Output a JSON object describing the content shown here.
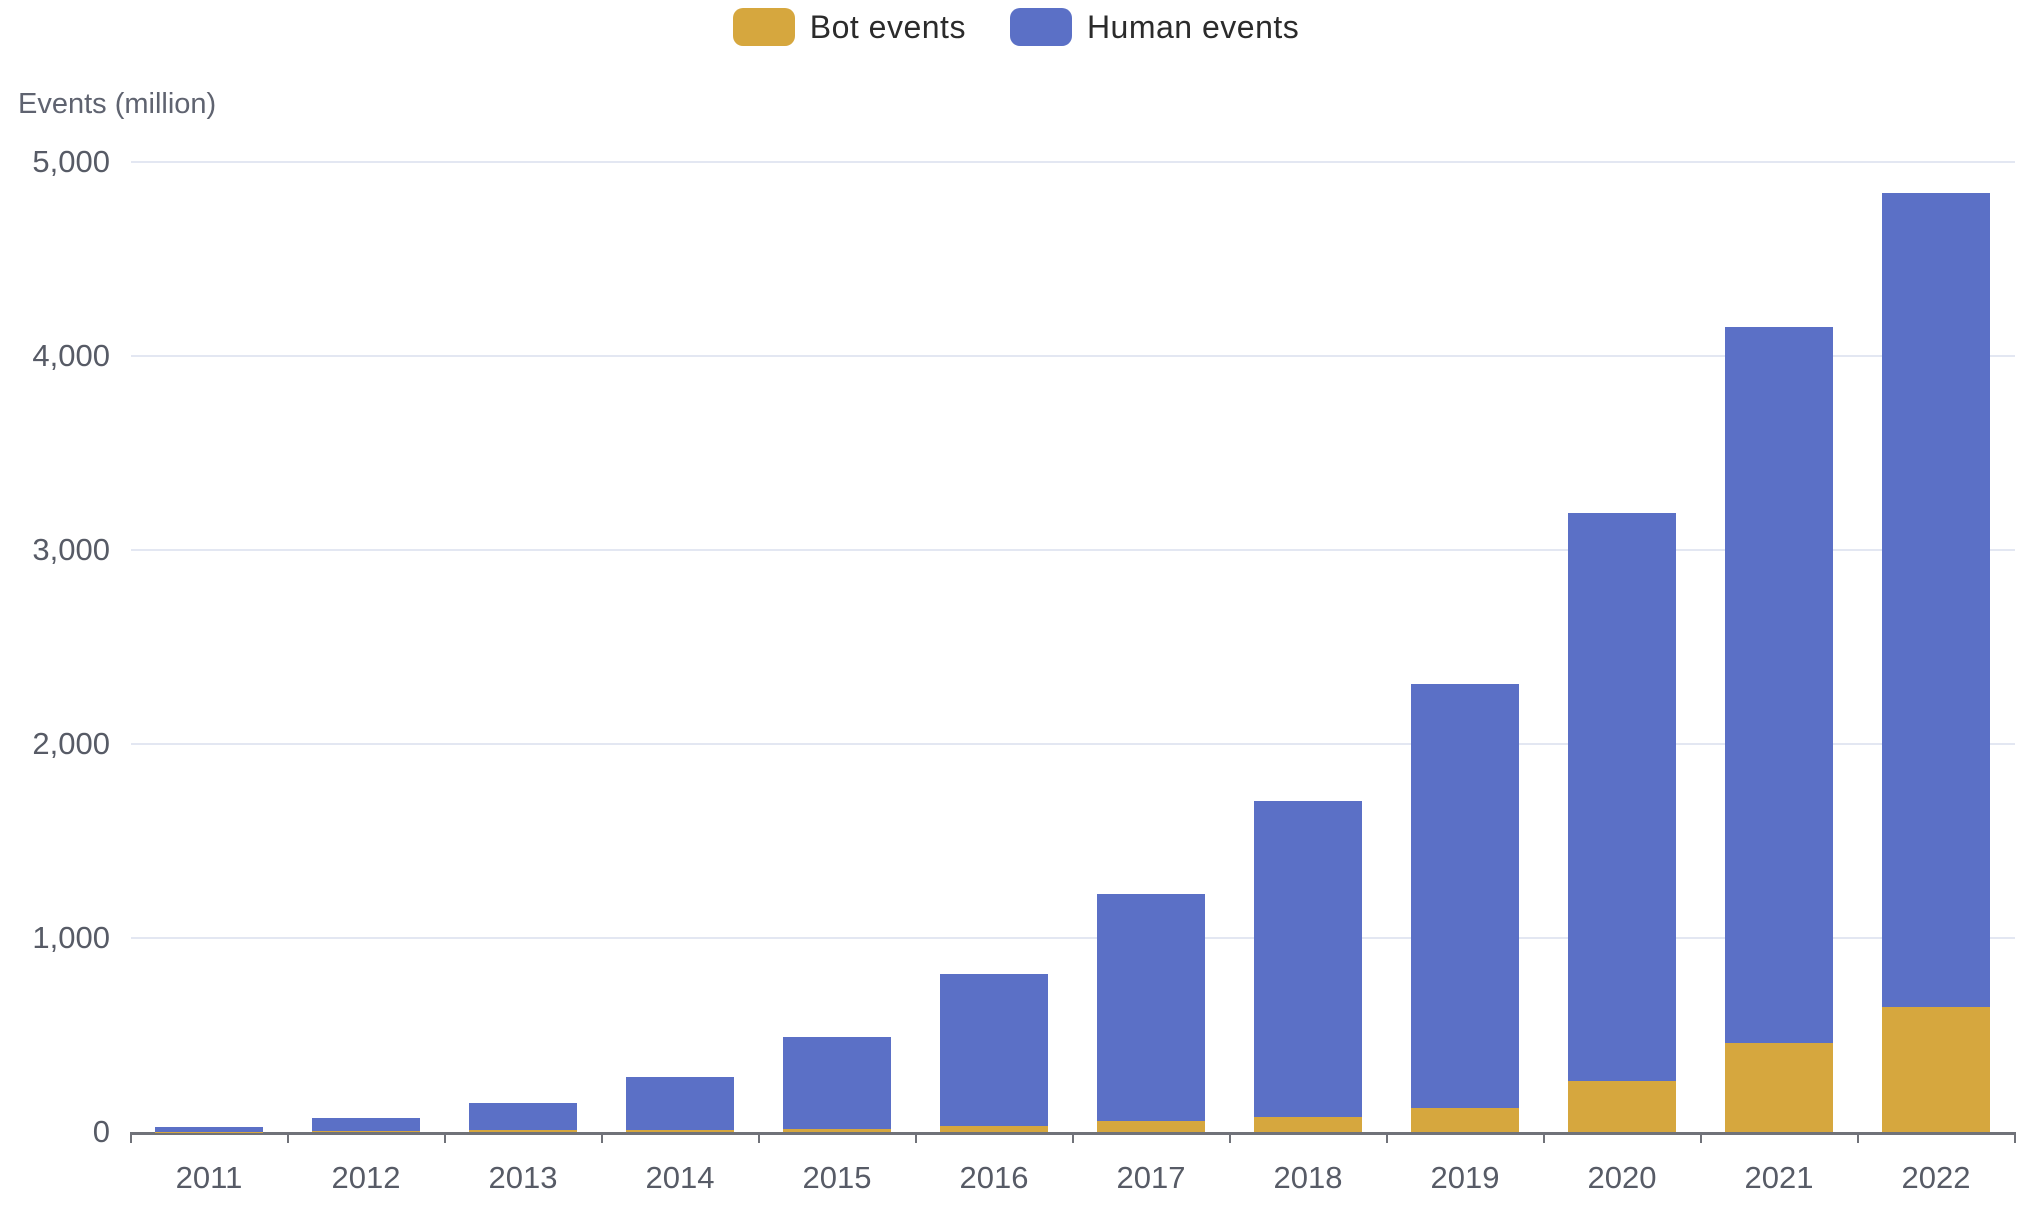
{
  "legend": {
    "items": [
      {
        "label": "Bot events",
        "color": "#D6A73E"
      },
      {
        "label": "Human events",
        "color": "#5B70C6"
      }
    ]
  },
  "chart_data": {
    "type": "bar",
    "stacked": true,
    "title": "",
    "ylabel": "Events (million)",
    "xlabel": "",
    "categories": [
      "2011",
      "2012",
      "2013",
      "2014",
      "2015",
      "2016",
      "2017",
      "2018",
      "2019",
      "2020",
      "2021",
      "2022"
    ],
    "series": [
      {
        "name": "Bot events",
        "color": "#D6A73E",
        "values": [
          2,
          4,
          8,
          12,
          18,
          30,
          55,
          78,
          125,
          265,
          460,
          645
        ]
      },
      {
        "name": "Human events",
        "color": "#5B70C6",
        "values": [
          23,
          66,
          142,
          273,
          472,
          785,
          1170,
          1627,
          2185,
          2925,
          3690,
          4195
        ]
      }
    ],
    "totals": [
      25,
      70,
      150,
      285,
      490,
      815,
      1225,
      1705,
      2310,
      3190,
      4150,
      4840
    ],
    "ylim": [
      0,
      5000
    ],
    "yticks": [
      0,
      1000,
      2000,
      3000,
      4000,
      5000
    ],
    "ytick_labels": [
      "0",
      "1,000",
      "2,000",
      "3,000",
      "4,000",
      "5,000"
    ],
    "grid": true,
    "legend_position": "top"
  },
  "colors": {
    "gridline": "#e3e7f2",
    "axis_line": "#707279",
    "tick_text": "#575b66",
    "legend_text": "#2b2b2b",
    "background": "#ffffff"
  }
}
